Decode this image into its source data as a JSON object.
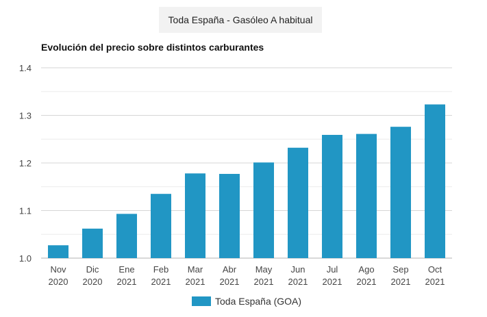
{
  "header": {
    "series_selector": "Toda España - Gasóleo A habitual"
  },
  "chart_data": {
    "type": "bar",
    "title": "Evolución del precio sobre distintos carburantes",
    "categories": [
      [
        "Nov",
        "2020"
      ],
      [
        "Dic",
        "2020"
      ],
      [
        "Ene",
        "2021"
      ],
      [
        "Feb",
        "2021"
      ],
      [
        "Mar",
        "2021"
      ],
      [
        "Abr",
        "2021"
      ],
      [
        "May",
        "2021"
      ],
      [
        "Jun",
        "2021"
      ],
      [
        "Jul",
        "2021"
      ],
      [
        "Ago",
        "2021"
      ],
      [
        "Sep",
        "2021"
      ],
      [
        "Oct",
        "2021"
      ]
    ],
    "series": [
      {
        "name": "Toda España (GOA)",
        "values": [
          1.027,
          1.062,
          1.093,
          1.135,
          1.178,
          1.177,
          1.201,
          1.232,
          1.259,
          1.261,
          1.276,
          1.323
        ]
      }
    ],
    "ylim": [
      1.0,
      1.4
    ],
    "yticks": [
      "1.0",
      "1.1",
      "1.2",
      "1.3",
      "1.4"
    ],
    "ytick_values": [
      1.0,
      1.1,
      1.2,
      1.3,
      1.4
    ],
    "grid": true,
    "legend_position": "bottom",
    "colors": {
      "bar": "#2196c4",
      "grid": "#d6d6d6",
      "minor_grid": "#ececec"
    }
  }
}
